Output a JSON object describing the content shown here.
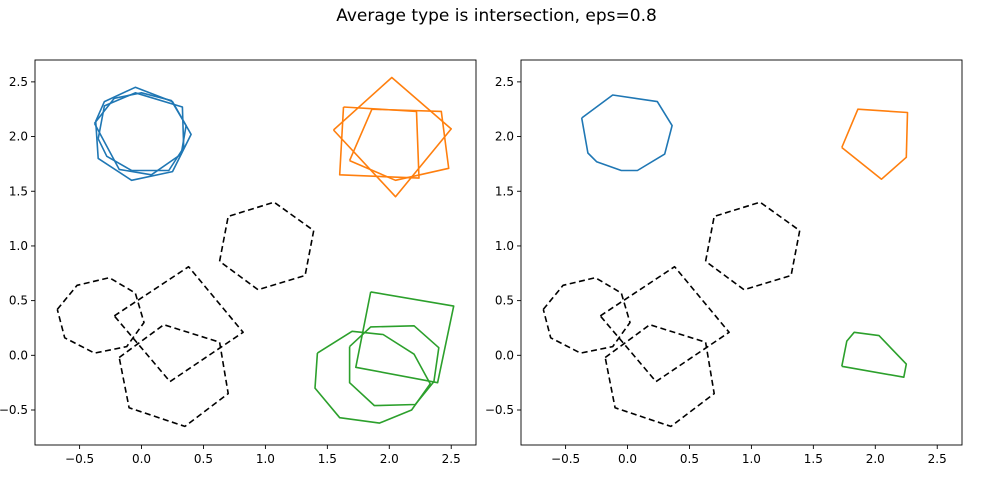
{
  "title": "Average type is intersection, eps=0.8",
  "colors": {
    "blue": "#1f77b4",
    "orange": "#ff7f0e",
    "green": "#2ca02c",
    "black": "#000000"
  },
  "chart_data": [
    {
      "type": "line",
      "title": "",
      "xlabel": "",
      "ylabel": "",
      "xlim": [
        -0.86,
        2.7
      ],
      "ylim": [
        -0.82,
        2.7
      ],
      "xticks": [
        "−0.5",
        "0.0",
        "0.5",
        "1.0",
        "1.5",
        "2.0",
        "2.5"
      ],
      "xtick_values": [
        -0.5,
        0,
        0.5,
        1,
        1.5,
        2,
        2.5
      ],
      "yticks": [
        "−0.5",
        "0.0",
        "0.5",
        "1.0",
        "1.5",
        "2.0",
        "2.5"
      ],
      "ytick_values": [
        -0.5,
        0,
        0.5,
        1,
        1.5,
        2,
        2.5
      ],
      "grid": false,
      "series": [
        {
          "color": "blue",
          "dashed": false,
          "points": [
            [
              -0.38,
              2.12
            ],
            [
              -0.22,
              2.35
            ],
            [
              0.0,
              2.4
            ],
            [
              0.24,
              2.33
            ],
            [
              0.36,
              2.1
            ],
            [
              0.32,
              1.84
            ],
            [
              0.08,
              1.65
            ],
            [
              -0.18,
              1.7
            ],
            [
              -0.38,
              2.12
            ]
          ]
        },
        {
          "color": "blue",
          "dashed": false,
          "points": [
            [
              -0.35,
              1.98
            ],
            [
              -0.28,
              1.82
            ],
            [
              -0.08,
              1.69
            ],
            [
              0.22,
              1.69
            ],
            [
              0.34,
              1.9
            ],
            [
              0.33,
              2.27
            ],
            [
              -0.05,
              2.4
            ],
            [
              -0.3,
              2.28
            ],
            [
              -0.35,
              1.98
            ]
          ]
        },
        {
          "color": "blue",
          "dashed": false,
          "points": [
            [
              -0.37,
              2.14
            ],
            [
              -0.35,
              1.8
            ],
            [
              -0.08,
              1.6
            ],
            [
              0.25,
              1.68
            ],
            [
              0.4,
              2.02
            ],
            [
              0.25,
              2.32
            ],
            [
              -0.05,
              2.45
            ],
            [
              -0.3,
              2.32
            ],
            [
              -0.37,
              2.14
            ]
          ]
        },
        {
          "color": "orange",
          "dashed": false,
          "points": [
            [
              1.63,
              2.27
            ],
            [
              2.22,
              2.23
            ],
            [
              2.24,
              1.62
            ],
            [
              1.6,
              1.65
            ],
            [
              1.63,
              2.27
            ]
          ]
        },
        {
          "color": "orange",
          "dashed": false,
          "points": [
            [
              1.55,
              2.06
            ],
            [
              2.02,
              2.54
            ],
            [
              2.5,
              2.07
            ],
            [
              2.05,
              1.45
            ],
            [
              1.55,
              2.06
            ]
          ]
        },
        {
          "color": "orange",
          "dashed": false,
          "points": [
            [
              1.68,
              1.78
            ],
            [
              2.05,
              1.6
            ],
            [
              2.48,
              1.71
            ],
            [
              2.42,
              2.23
            ],
            [
              1.86,
              2.25
            ],
            [
              1.68,
              1.78
            ]
          ]
        },
        {
          "color": "green",
          "dashed": false,
          "points": [
            [
              1.42,
              0.02
            ],
            [
              1.7,
              0.22
            ],
            [
              1.95,
              0.19
            ],
            [
              2.2,
              0.01
            ],
            [
              2.33,
              -0.26
            ],
            [
              2.18,
              -0.5
            ],
            [
              1.92,
              -0.62
            ],
            [
              1.6,
              -0.57
            ],
            [
              1.4,
              -0.3
            ],
            [
              1.42,
              0.02
            ]
          ]
        },
        {
          "color": "green",
          "dashed": false,
          "points": [
            [
              1.68,
              0.08
            ],
            [
              1.85,
              0.26
            ],
            [
              2.2,
              0.27
            ],
            [
              2.4,
              0.07
            ],
            [
              2.36,
              -0.24
            ],
            [
              2.21,
              -0.45
            ],
            [
              1.88,
              -0.46
            ],
            [
              1.68,
              -0.25
            ],
            [
              1.68,
              0.08
            ]
          ]
        },
        {
          "color": "green",
          "dashed": false,
          "points": [
            [
              1.85,
              0.58
            ],
            [
              2.52,
              0.45
            ],
            [
              2.39,
              -0.25
            ],
            [
              1.73,
              -0.11
            ],
            [
              1.85,
              0.58
            ]
          ]
        },
        {
          "color": "black",
          "dashed": true,
          "points": [
            [
              -0.68,
              0.42
            ],
            [
              -0.52,
              0.64
            ],
            [
              -0.26,
              0.71
            ],
            [
              -0.05,
              0.57
            ],
            [
              0.02,
              0.3
            ],
            [
              -0.12,
              0.08
            ],
            [
              -0.38,
              0.02
            ],
            [
              -0.62,
              0.16
            ],
            [
              -0.68,
              0.42
            ]
          ]
        },
        {
          "color": "black",
          "dashed": true,
          "points": [
            [
              -0.22,
              0.36
            ],
            [
              0.38,
              0.81
            ],
            [
              0.82,
              0.21
            ],
            [
              0.23,
              -0.24
            ],
            [
              -0.22,
              0.36
            ]
          ]
        },
        {
          "color": "black",
          "dashed": true,
          "points": [
            [
              -0.18,
              -0.02
            ],
            [
              0.18,
              0.28
            ],
            [
              0.63,
              0.12
            ],
            [
              0.7,
              -0.35
            ],
            [
              0.35,
              -0.65
            ],
            [
              -0.1,
              -0.48
            ],
            [
              -0.18,
              -0.02
            ]
          ]
        },
        {
          "color": "black",
          "dashed": true,
          "points": [
            [
              0.63,
              0.86
            ],
            [
              0.7,
              1.27
            ],
            [
              1.07,
              1.4
            ],
            [
              1.39,
              1.14
            ],
            [
              1.32,
              0.73
            ],
            [
              0.94,
              0.6
            ],
            [
              0.63,
              0.86
            ]
          ]
        }
      ]
    },
    {
      "type": "line",
      "title": "",
      "xlabel": "",
      "ylabel": "",
      "xlim": [
        -0.86,
        2.7
      ],
      "ylim": [
        -0.82,
        2.7
      ],
      "xticks": [
        "−0.5",
        "0.0",
        "0.5",
        "1.0",
        "1.5",
        "2.0",
        "2.5"
      ],
      "xtick_values": [
        -0.5,
        0,
        0.5,
        1,
        1.5,
        2,
        2.5
      ],
      "yticks": [
        "−0.5",
        "0.0",
        "0.5",
        "1.0",
        "1.5",
        "2.0",
        "2.5"
      ],
      "ytick_values": [
        -0.5,
        0,
        0.5,
        1,
        1.5,
        2,
        2.5
      ],
      "grid": false,
      "series": [
        {
          "color": "blue",
          "dashed": false,
          "points": [
            [
              -0.37,
              2.17
            ],
            [
              -0.32,
              1.85
            ],
            [
              -0.25,
              1.77
            ],
            [
              -0.05,
              1.69
            ],
            [
              0.08,
              1.69
            ],
            [
              0.3,
              1.84
            ],
            [
              0.36,
              2.1
            ],
            [
              0.24,
              2.32
            ],
            [
              -0.12,
              2.38
            ],
            [
              -0.37,
              2.17
            ]
          ]
        },
        {
          "color": "orange",
          "dashed": false,
          "points": [
            [
              1.73,
              1.9
            ],
            [
              1.86,
              2.25
            ],
            [
              2.26,
              2.22
            ],
            [
              2.25,
              1.81
            ],
            [
              2.05,
              1.61
            ],
            [
              1.73,
              1.9
            ]
          ]
        },
        {
          "color": "green",
          "dashed": false,
          "points": [
            [
              1.73,
              -0.1
            ],
            [
              1.77,
              0.13
            ],
            [
              1.83,
              0.21
            ],
            [
              2.03,
              0.18
            ],
            [
              2.25,
              -0.08
            ],
            [
              2.23,
              -0.2
            ],
            [
              1.73,
              -0.1
            ]
          ]
        },
        {
          "color": "black",
          "dashed": true,
          "points": [
            [
              -0.68,
              0.42
            ],
            [
              -0.52,
              0.64
            ],
            [
              -0.26,
              0.71
            ],
            [
              -0.05,
              0.57
            ],
            [
              0.02,
              0.3
            ],
            [
              -0.12,
              0.08
            ],
            [
              -0.38,
              0.02
            ],
            [
              -0.62,
              0.16
            ],
            [
              -0.68,
              0.42
            ]
          ]
        },
        {
          "color": "black",
          "dashed": true,
          "points": [
            [
              -0.22,
              0.36
            ],
            [
              0.38,
              0.81
            ],
            [
              0.82,
              0.21
            ],
            [
              0.23,
              -0.24
            ],
            [
              -0.22,
              0.36
            ]
          ]
        },
        {
          "color": "black",
          "dashed": true,
          "points": [
            [
              -0.18,
              -0.02
            ],
            [
              0.18,
              0.28
            ],
            [
              0.63,
              0.12
            ],
            [
              0.7,
              -0.35
            ],
            [
              0.35,
              -0.65
            ],
            [
              -0.1,
              -0.48
            ],
            [
              -0.18,
              -0.02
            ]
          ]
        },
        {
          "color": "black",
          "dashed": true,
          "points": [
            [
              0.63,
              0.86
            ],
            [
              0.7,
              1.27
            ],
            [
              1.07,
              1.4
            ],
            [
              1.39,
              1.14
            ],
            [
              1.32,
              0.73
            ],
            [
              0.94,
              0.6
            ],
            [
              0.63,
              0.86
            ]
          ]
        }
      ]
    }
  ]
}
